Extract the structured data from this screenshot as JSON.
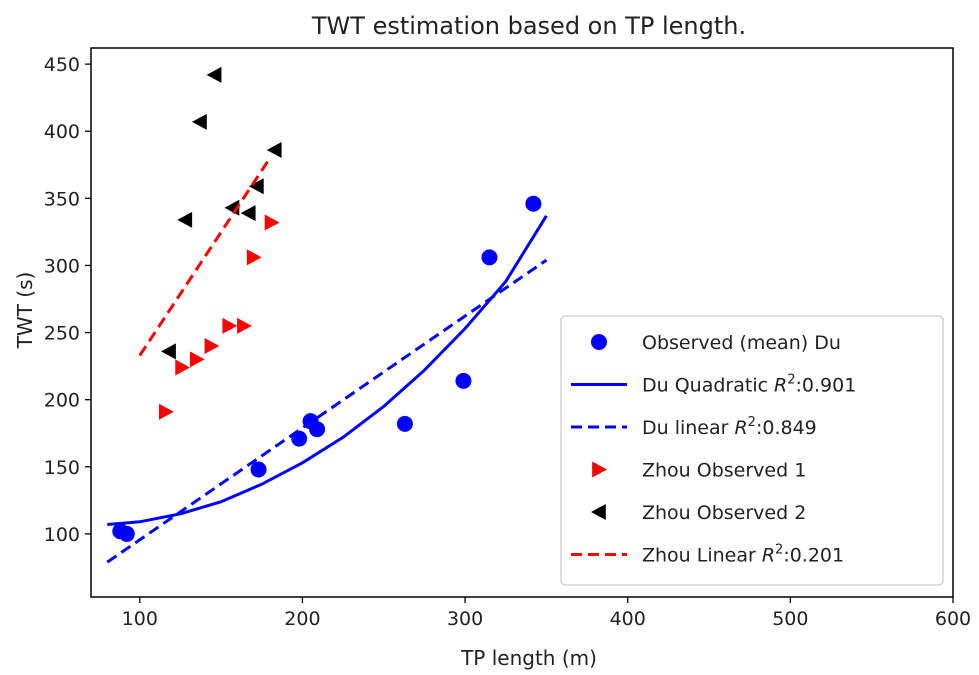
{
  "chart_data": {
    "type": "scatter",
    "title": "TWT estimation based on TP length.",
    "xlabel": "TP length (m)",
    "ylabel": "TWT (s)",
    "xlim": [
      70,
      600
    ],
    "ylim": [
      53,
      462
    ],
    "xticks": [
      100,
      200,
      300,
      400,
      500,
      600
    ],
    "yticks": [
      100,
      150,
      200,
      250,
      300,
      350,
      400,
      450
    ],
    "xtick_labels": [
      "100",
      "200",
      "300",
      "400",
      "500",
      "600"
    ],
    "ytick_labels": [
      "100",
      "150",
      "200",
      "250",
      "300",
      "350",
      "400",
      "450"
    ],
    "grid": false,
    "legend_position": "bottom-right",
    "series": [
      {
        "name": "Observed (mean) Du",
        "kind": "scatter",
        "marker": "circle",
        "color": "#0000ff",
        "x": [
          88,
          92,
          173,
          198,
          205,
          209,
          263,
          299,
          315,
          342
        ],
        "y": [
          102,
          100,
          148,
          171,
          184,
          178,
          182,
          214,
          306,
          346
        ]
      },
      {
        "name": "Du Quadratic",
        "name_suffix": ":0.901",
        "kind": "line",
        "style": "solid",
        "color": "#0000ff",
        "x": [
          80,
          100,
          125,
          150,
          175,
          200,
          225,
          250,
          275,
          300,
          325,
          350
        ],
        "y": [
          107,
          109,
          115,
          124,
          137,
          153,
          172,
          195,
          222,
          253,
          288,
          337
        ]
      },
      {
        "name": "Du linear",
        "name_suffix": ":0.849",
        "kind": "line",
        "style": "dashed",
        "color": "#0000ff",
        "x": [
          80,
          350
        ],
        "y": [
          79,
          304
        ]
      },
      {
        "name": "Zhou Observed 1",
        "kind": "scatter",
        "marker": "triangle-right",
        "color": "#ff0000",
        "x": [
          116,
          126,
          135,
          144,
          155,
          164,
          170,
          181
        ],
        "y": [
          191,
          224,
          230,
          240,
          255,
          255,
          306,
          332
        ]
      },
      {
        "name": "Zhou Observed 2",
        "kind": "scatter",
        "marker": "triangle-left",
        "color": "#000000",
        "x": [
          118,
          128,
          137,
          146,
          157,
          167,
          172,
          183
        ],
        "y": [
          236,
          334,
          407,
          442,
          343,
          339,
          359,
          386
        ]
      },
      {
        "name": "Zhou Linear",
        "name_suffix": ":0.201",
        "kind": "line",
        "style": "dashed",
        "color": "#ff0000",
        "x": [
          100,
          180
        ],
        "y": [
          233,
          380
        ]
      }
    ]
  }
}
